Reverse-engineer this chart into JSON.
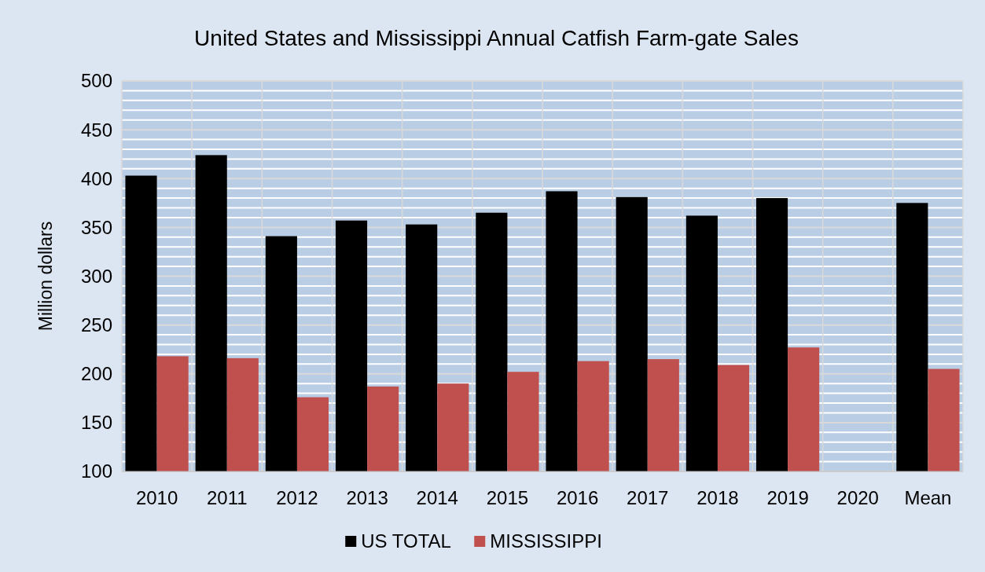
{
  "chart_data": {
    "type": "bar",
    "title": "United States and Mississippi Annual Catfish Farm-gate Sales",
    "ylabel": "Million dollars",
    "categories": [
      "2010",
      "2011",
      "2012",
      "2013",
      "2014",
      "2015",
      "2016",
      "2017",
      "2018",
      "2019",
      "2020",
      "Mean"
    ],
    "series": [
      {
        "name": "US TOTAL",
        "color": "#000000",
        "values": [
          403,
          424,
          341,
          357,
          353,
          365,
          387,
          381,
          362,
          380,
          null,
          375
        ]
      },
      {
        "name": "MISSISSIPPI",
        "color": "#c0504d",
        "values": [
          218,
          216,
          176,
          187,
          190,
          202,
          213,
          215,
          209,
          227,
          null,
          205
        ]
      }
    ],
    "ylim": [
      100,
      500
    ],
    "yticks": [
      100,
      150,
      200,
      250,
      300,
      350,
      400,
      450,
      500
    ],
    "grid": true,
    "legend": "bottom"
  }
}
